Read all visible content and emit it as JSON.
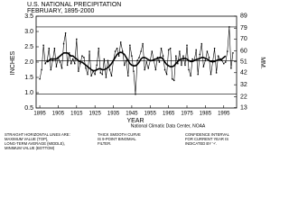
{
  "chart_data": {
    "type": "line",
    "title": "U.S. NATIONAL PRECIPITATION",
    "subtitle": "FEBRUARY, 1895-2000",
    "ylabel": "INCHES",
    "y2label": "MM.",
    "xlabel": "YEAR",
    "source": "National Climatic Data Center, NOAA",
    "notes": [
      [
        "STRAIGHT HORIZONTAL LINES ARE:",
        "MAXIMUM VALUE (TOP),",
        "LONG-TERM AVERAGE (MIDDLE),",
        "MINIMUM VALUE (BOTTOM)"
      ],
      [
        "THICK SMOOTH CURVE",
        "IS 9-POINT BINOMIAL",
        "FILTER."
      ],
      [
        "CONFIDENCE INTERVAL",
        "FOR CURRENT YEAR IS",
        "INDICATED BY '+'."
      ]
    ],
    "x": [
      1895,
      1896,
      1897,
      1898,
      1899,
      1900,
      1901,
      1902,
      1903,
      1904,
      1905,
      1906,
      1907,
      1908,
      1909,
      1910,
      1911,
      1912,
      1913,
      1914,
      1915,
      1916,
      1917,
      1918,
      1919,
      1920,
      1921,
      1922,
      1923,
      1924,
      1925,
      1926,
      1927,
      1928,
      1929,
      1930,
      1931,
      1932,
      1933,
      1934,
      1935,
      1936,
      1937,
      1938,
      1939,
      1940,
      1941,
      1942,
      1943,
      1944,
      1945,
      1946,
      1947,
      1948,
      1949,
      1950,
      1951,
      1952,
      1953,
      1954,
      1955,
      1956,
      1957,
      1958,
      1959,
      1960,
      1961,
      1962,
      1963,
      1964,
      1965,
      1966,
      1967,
      1968,
      1969,
      1970,
      1971,
      1972,
      1973,
      1974,
      1975,
      1976,
      1977,
      1978,
      1979,
      1980,
      1981,
      1982,
      1983,
      1984,
      1985,
      1986,
      1987,
      1988,
      1989,
      1990,
      1991,
      1992,
      1993,
      1994,
      1995,
      1996,
      1997,
      1998,
      1999,
      2000
    ],
    "series": [
      {
        "color": "#000000",
        "values": [
          1.45,
          1.75,
          2.55,
          1.95,
          2.05,
          2.45,
          1.75,
          2.05,
          2.45,
          1.85,
          2.15,
          2.0,
          1.8,
          2.6,
          2.95,
          1.9,
          2.3,
          1.95,
          2.1,
          1.95,
          2.75,
          1.7,
          1.95,
          2.2,
          2.15,
          1.8,
          1.6,
          2.35,
          1.55,
          1.7,
          1.6,
          1.9,
          2.45,
          1.65,
          1.6,
          2.1,
          1.5,
          2.05,
          1.75,
          1.55,
          2.05,
          2.35,
          2.45,
          2.2,
          2.65,
          2.35,
          1.9,
          2.05,
          1.55,
          2.55,
          2.2,
          1.7,
          0.95,
          2.05,
          2.15,
          2.35,
          2.6,
          1.75,
          2.0,
          1.8,
          2.05,
          2.35,
          2.05,
          1.75,
          2.15,
          2.0,
          2.45,
          2.2,
          1.75,
          1.6,
          2.4,
          2.45,
          1.45,
          1.4,
          2.2,
          1.95,
          2.35,
          1.9,
          2.2,
          1.9,
          2.55,
          1.75,
          1.55,
          2.1,
          2.05,
          2.4,
          1.6,
          2.25,
          2.6,
          1.85,
          2.05,
          2.35,
          2.15,
          1.6,
          2.0,
          2.45,
          1.65,
          2.2,
          2.1,
          2.05,
          1.95,
          2.0,
          2.35,
          3.15,
          1.8,
          2.3
        ]
      },
      {
        "color": "#000000",
        "values": [
          null,
          null,
          null,
          null,
          2.0,
          2.05,
          2.1,
          2.1,
          2.1,
          2.1,
          2.15,
          2.2,
          2.25,
          2.3,
          2.3,
          2.3,
          2.25,
          2.2,
          2.2,
          2.15,
          2.1,
          2.05,
          2.0,
          2.0,
          1.95,
          1.9,
          1.85,
          1.8,
          1.75,
          1.72,
          1.72,
          1.75,
          1.78,
          1.78,
          1.75,
          1.75,
          1.78,
          1.82,
          1.88,
          1.95,
          2.05,
          2.15,
          2.25,
          2.3,
          2.32,
          2.3,
          2.25,
          2.15,
          2.05,
          1.95,
          1.9,
          1.88,
          1.88,
          1.92,
          2.0,
          2.1,
          2.15,
          2.15,
          2.12,
          2.08,
          2.05,
          2.05,
          2.08,
          2.1,
          2.12,
          2.15,
          2.15,
          2.1,
          2.0,
          1.92,
          1.88,
          1.85,
          1.85,
          1.88,
          1.95,
          2.02,
          2.08,
          2.1,
          2.12,
          2.12,
          2.1,
          2.05,
          2.02,
          2.02,
          2.05,
          2.08,
          2.1,
          2.12,
          2.15,
          2.15,
          2.12,
          2.1,
          2.05,
          2.02,
          2.02,
          2.02,
          2.05,
          2.08,
          2.08,
          2.1,
          2.15,
          2.2,
          null,
          null,
          null,
          null
        ]
      }
    ],
    "hlines": [
      3.15,
      2.05,
      0.95
    ],
    "xlim": [
      1893,
      2002
    ],
    "xticks": [
      1895,
      1905,
      1915,
      1925,
      1935,
      1945,
      1955,
      1965,
      1975,
      1985,
      1995
    ],
    "ylim": [
      0.5,
      3.5
    ],
    "yticks": [
      0.5,
      1.0,
      1.5,
      2.0,
      2.5,
      3.0,
      3.5
    ],
    "y2lim": [
      12.7,
      88.9
    ],
    "y2ticks": [
      13,
      22,
      32,
      42,
      51,
      60,
      70,
      79,
      89
    ]
  }
}
